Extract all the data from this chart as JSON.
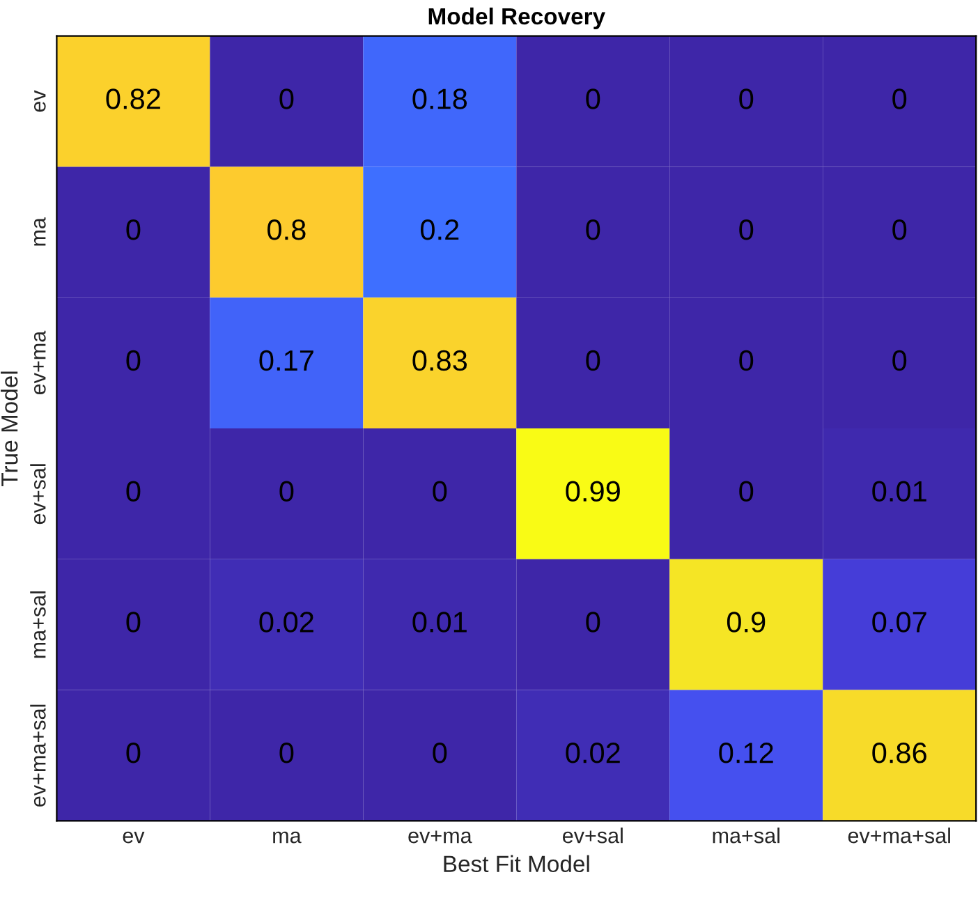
{
  "chart_data": {
    "type": "heatmap",
    "title": "Model Recovery",
    "xlabel": "Best Fit Model",
    "ylabel": "True Model",
    "categories": [
      "ev",
      "ma",
      "ev+ma",
      "ev+sal",
      "ma+sal",
      "ev+ma+sal"
    ],
    "y_categories": [
      "ev",
      "ma",
      "ev+ma",
      "ev+sal",
      "ma+sal",
      "ev+ma+sal"
    ],
    "cells": [
      [
        0.82,
        0,
        0.18,
        0,
        0,
        0
      ],
      [
        0,
        0.8,
        0.2,
        0,
        0,
        0
      ],
      [
        0,
        0.17,
        0.83,
        0,
        0,
        0
      ],
      [
        0,
        0,
        0,
        0.99,
        0,
        0.01
      ],
      [
        0,
        0.02,
        0.01,
        0,
        0.9,
        0.07
      ],
      [
        0,
        0,
        0,
        0.02,
        0.12,
        0.86
      ]
    ],
    "data_labels": true
  }
}
